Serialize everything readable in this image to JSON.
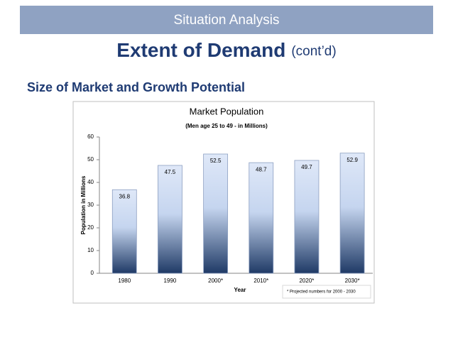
{
  "header": {
    "banner": "Situation Analysis",
    "title": "Extent of Demand",
    "title_suffix": "(cont’d)",
    "subtitle": "Size of Market and Growth Potential"
  },
  "chart_data": {
    "type": "bar",
    "title": "Market Population",
    "subtitle": "(Men age 25 to 49 - in Millions)",
    "x_label": "Year",
    "y_label": "Population in Millions",
    "categories": [
      "1980",
      "1990",
      "2000*",
      "2010*",
      "2020*",
      "2030*"
    ],
    "values": [
      36.8,
      47.5,
      52.5,
      48.7,
      49.7,
      52.9
    ],
    "ylim": [
      0,
      60
    ],
    "yticks": [
      0,
      10,
      20,
      30,
      40,
      50,
      60
    ],
    "grid": false,
    "annotation": "* Projected numbers for 2000 - 2030"
  }
}
